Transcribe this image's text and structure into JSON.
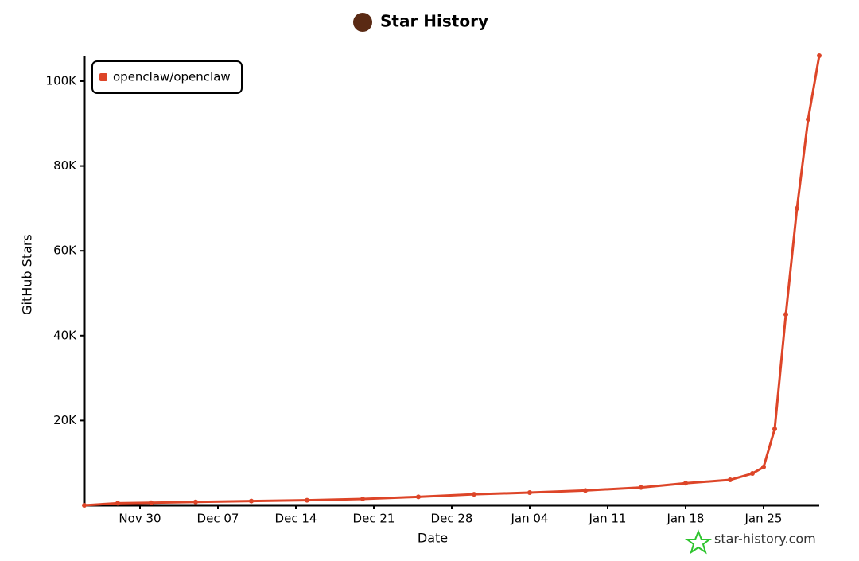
{
  "chart_data": {
    "type": "line",
    "title": "Star History",
    "x_label": "Date",
    "y_label": "GitHub Stars",
    "watermark": "star-history.com",
    "x": [
      "Nov 25",
      "Nov 28",
      "Dec 01",
      "Dec 05",
      "Dec 10",
      "Dec 15",
      "Dec 20",
      "Dec 25",
      "Dec 30",
      "Jan 04",
      "Jan 09",
      "Jan 14",
      "Jan 18",
      "Jan 22",
      "Jan 24",
      "Jan 25",
      "Jan 26",
      "Jan 27",
      "Jan 28",
      "Jan 29",
      "Jan 30"
    ],
    "series": [
      {
        "name": "openclaw/openclaw",
        "color": "#dd4528",
        "values": [
          0,
          500,
          600,
          800,
          1000,
          1200,
          1500,
          2000,
          2600,
          3000,
          3500,
          4200,
          5200,
          6000,
          7500,
          9000,
          18000,
          45000,
          70000,
          91000,
          106000
        ]
      }
    ],
    "xlim": [
      "Nov 25",
      "Jan 30"
    ],
    "xticks": [
      "Nov 30",
      "Dec 07",
      "Dec 14",
      "Dec 21",
      "Dec 28",
      "Jan 04",
      "Jan 11",
      "Jan 18",
      "Jan 25"
    ],
    "ylim": [
      0,
      106000
    ],
    "yticks": [
      {
        "value": 20000,
        "label": "20K"
      },
      {
        "value": 40000,
        "label": "40K"
      },
      {
        "value": 60000,
        "label": "60K"
      },
      {
        "value": 80000,
        "label": "80K"
      },
      {
        "value": 100000,
        "label": "100K"
      }
    ],
    "legend": "top-left"
  }
}
